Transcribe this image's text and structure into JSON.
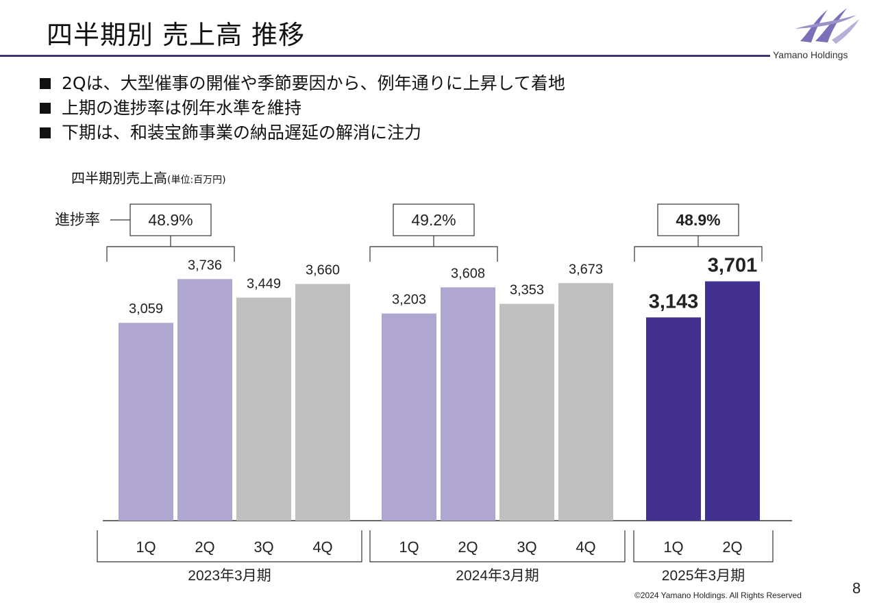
{
  "title": "四半期別 売上高 推移",
  "logo": {
    "text": "Yamano Holdings",
    "color": "#7a6fb8"
  },
  "bullets": [
    "2Qは、大型催事の開催や季節要因から、例年通りに上昇して着地",
    "上期の進捗率は例年水準を維持",
    "下期は、和装宝飾事業の納品遅延の解消に注力"
  ],
  "chart_label": {
    "main": "四半期別売上高",
    "unit": "(単位:百万円)"
  },
  "progress_label": "進捗率",
  "footer": {
    "copyright": "©2024 Yamano Holdings. All Rights Reserved",
    "page": "8"
  },
  "chart_data": {
    "type": "bar",
    "title": "四半期別売上高",
    "ylabel": "",
    "ylim": [
      0,
      4000
    ],
    "grid": false,
    "legend": "none",
    "colors": {
      "h1_past": "#afa7d0",
      "h2_past": "#c0c0c0",
      "current": "#43318f"
    },
    "groups": [
      {
        "label": "2023年3月期",
        "progress": "48.9%",
        "bars": [
          {
            "q": "1Q",
            "value": 3059,
            "label": "3,059",
            "style": "h1_past"
          },
          {
            "q": "2Q",
            "value": 3736,
            "label": "3,736",
            "style": "h1_past"
          },
          {
            "q": "3Q",
            "value": 3449,
            "label": "3,449",
            "style": "h2_past"
          },
          {
            "q": "4Q",
            "value": 3660,
            "label": "3,660",
            "style": "h2_past"
          }
        ]
      },
      {
        "label": "2024年3月期",
        "progress": "49.2%",
        "bars": [
          {
            "q": "1Q",
            "value": 3203,
            "label": "3,203",
            "style": "h1_past"
          },
          {
            "q": "2Q",
            "value": 3608,
            "label": "3,608",
            "style": "h1_past"
          },
          {
            "q": "3Q",
            "value": 3353,
            "label": "3,353",
            "style": "h2_past"
          },
          {
            "q": "4Q",
            "value": 3673,
            "label": "3,673",
            "style": "h2_past"
          }
        ]
      },
      {
        "label": "2025年3月期",
        "progress": "48.9%",
        "bars": [
          {
            "q": "1Q",
            "value": 3143,
            "label": "3,143",
            "style": "current"
          },
          {
            "q": "2Q",
            "value": 3701,
            "label": "3,701",
            "style": "current"
          }
        ]
      }
    ]
  }
}
